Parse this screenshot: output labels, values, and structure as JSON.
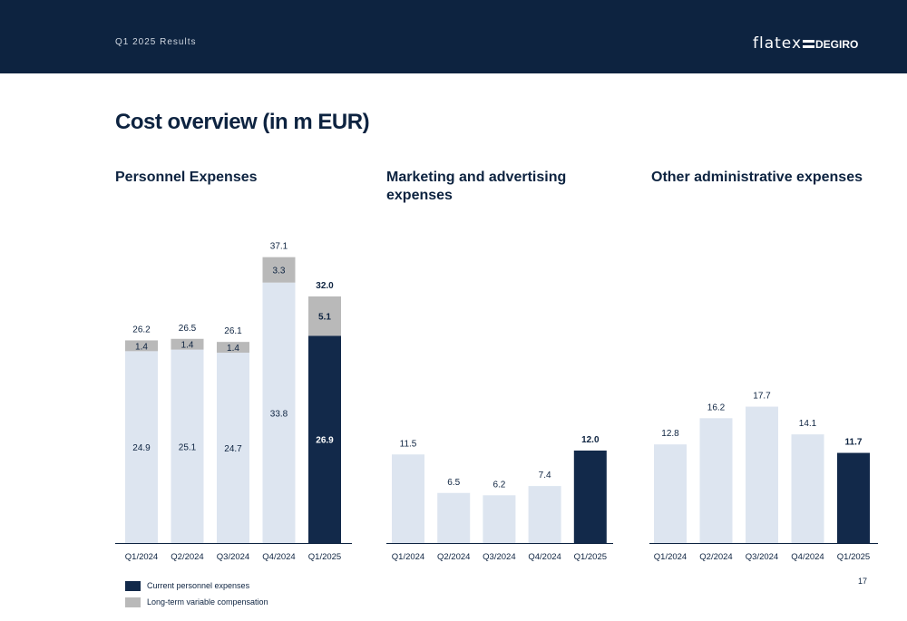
{
  "header": {
    "subtitle": "Q1 2025 Results",
    "logo_left": "flatex",
    "logo_right": "DEGIRO"
  },
  "page_title": "Cost overview (in m EUR)",
  "page_number": "17",
  "colors": {
    "light": "#dde5f0",
    "gray": "#b9b9b9",
    "navy": "#12294a",
    "header": "#0d2340"
  },
  "legend": [
    {
      "label": "Current personnel expenses",
      "color": "#12294a"
    },
    {
      "label": "Long-term variable compensation",
      "color": "#b9b9b9"
    }
  ],
  "chart_data": [
    {
      "type": "bar",
      "stacked": true,
      "title": "Personnel Expenses",
      "categories": [
        "Q1/2024",
        "Q2/2024",
        "Q3/2024",
        "Q4/2024",
        "Q1/2025"
      ],
      "series": [
        {
          "name": "Current personnel expenses",
          "values": [
            24.9,
            25.1,
            24.7,
            33.8,
            26.9
          ]
        },
        {
          "name": "Long-term variable compensation",
          "values": [
            1.4,
            1.4,
            1.4,
            3.3,
            5.1
          ]
        }
      ],
      "totals": [
        26.2,
        26.5,
        26.1,
        37.1,
        32.0
      ],
      "total_labels": [
        "26.2",
        "26.5",
        "26.1",
        "37.1",
        "32.0"
      ],
      "base_labels": [
        "24.9",
        "25.1",
        "24.7",
        "33.8",
        "26.9"
      ],
      "top_labels": [
        "1.4",
        "1.4",
        "1.4",
        "3.3",
        "5.1"
      ],
      "highlight_index": 4
    },
    {
      "type": "bar",
      "title": "Marketing and advertising expenses",
      "categories": [
        "Q1/2024",
        "Q2/2024",
        "Q3/2024",
        "Q4/2024",
        "Q1/2025"
      ],
      "values": [
        11.5,
        6.5,
        6.2,
        7.4,
        12.0
      ],
      "value_labels": [
        "11.5",
        "6.5",
        "6.2",
        "7.4",
        "12.0"
      ],
      "highlight_index": 4
    },
    {
      "type": "bar",
      "title": "Other administrative expenses",
      "categories": [
        "Q1/2024",
        "Q2/2024",
        "Q3/2024",
        "Q4/2024",
        "Q1/2025"
      ],
      "values": [
        12.8,
        16.2,
        17.7,
        14.1,
        11.7
      ],
      "value_labels": [
        "12.8",
        "16.2",
        "17.7",
        "14.1",
        "11.7"
      ],
      "highlight_index": 4
    }
  ]
}
